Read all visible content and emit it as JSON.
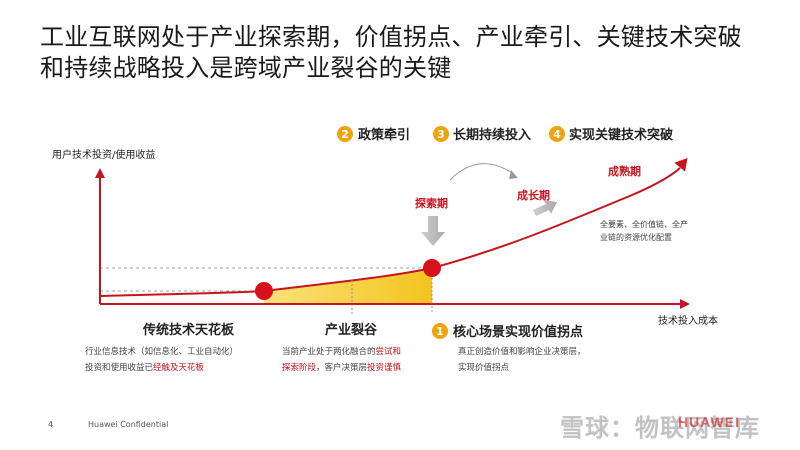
{
  "title": {
    "line1": "工业互联网处于产业探索期，价值拐点、产业牵引、关键技术突破",
    "line2": "和持续战略投入是跨域产业裂谷的关键"
  },
  "axes": {
    "y_label": "用户技术投资/使用收益",
    "x_label": "技术投入成本"
  },
  "steps": [
    {
      "num": "1",
      "label": "核心场景实现价值拐点"
    },
    {
      "num": "2",
      "label": "政策牵引"
    },
    {
      "num": "3",
      "label": "长期持续投入"
    },
    {
      "num": "4",
      "label": "实现关键技术突破"
    }
  ],
  "stages": {
    "explore": "探索期",
    "growth": "成长期",
    "mature": "成熟期"
  },
  "mature_note": {
    "line1": "全要素、全价值链、全产",
    "line2": "业链的资源优化配置"
  },
  "ceiling": {
    "title": "传统技术天花板",
    "line1": "行业信息技术（如信息化、工业自动化）",
    "line2_plain": "投资和使用收益已",
    "line2_red": "经触及天花板"
  },
  "gap": {
    "title": "产业裂谷",
    "line1_plain": "当前产业处于两化融合的",
    "line1_red": "尝试和",
    "line2_red": "探索阶段",
    "line2_plain": "，客户决策层",
    "line2_red2": "投资谨慎"
  },
  "inflection": {
    "line1": "真正创造价值和影响企业决策层，",
    "line2": "实现价值拐点"
  },
  "footer": {
    "page": "4",
    "confidential": "Huawei Confidential",
    "watermark": "雪球：物联网智库",
    "logo": "HUAWEI"
  },
  "colors": {
    "red": "#c8141e",
    "orange": "#f0a30a",
    "gap_fill": "#f6c82a",
    "arrow_gray": "#b5b5b5"
  }
}
